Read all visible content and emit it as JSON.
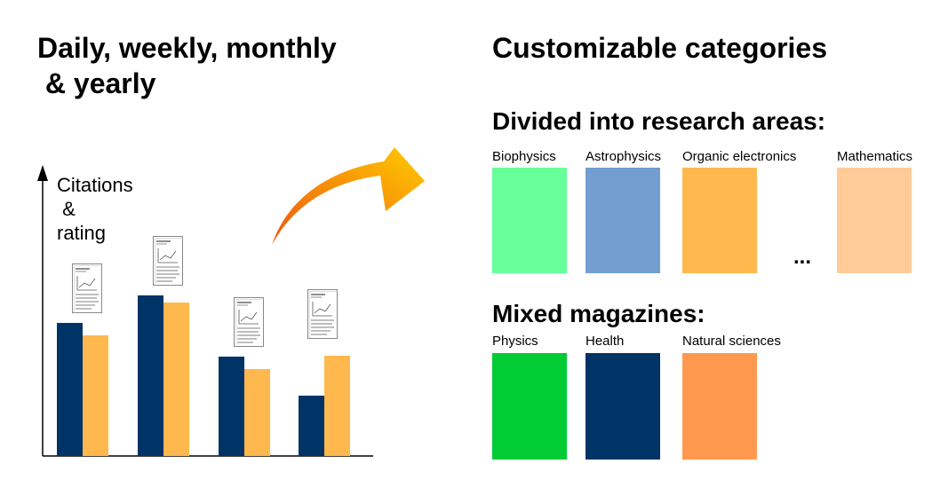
{
  "left_title": "Daily, weekly, monthly\n & yearly",
  "right_title": "Customizable categories",
  "chart_data": {
    "type": "bar",
    "ylabel": "Citations\n &\nrating",
    "categories": [
      "",
      "",
      "",
      ""
    ],
    "series": [
      {
        "color": "#003366",
        "values": [
          150,
          181,
          112,
          68
        ]
      },
      {
        "color": "#ffb84d",
        "values": [
          136,
          173,
          98,
          113
        ]
      }
    ],
    "ylim": [
      0,
      320
    ],
    "grid": false,
    "icons": "paper-document-icon above each bar pair"
  },
  "arrow": {
    "color_start": "#ee5511",
    "color_end": "#ffcc00"
  },
  "research_areas": {
    "heading": "Divided into research areas:",
    "ellipsis": "...",
    "items": [
      {
        "label": "Biophysics",
        "color": "#66ff99"
      },
      {
        "label": "Astrophysics",
        "color": "#729fcf"
      },
      {
        "label": "Organic electronics",
        "color": "#ffb84d"
      },
      {
        "label": "Mathematics",
        "color": "#ffcc99"
      }
    ]
  },
  "mixed_magazines": {
    "heading": "Mixed magazines:",
    "items": [
      {
        "label": "Physics",
        "color": "#00cc33"
      },
      {
        "label": "Health",
        "color": "#003366"
      },
      {
        "label": "Natural sciences",
        "color": "#ff9950"
      }
    ]
  }
}
